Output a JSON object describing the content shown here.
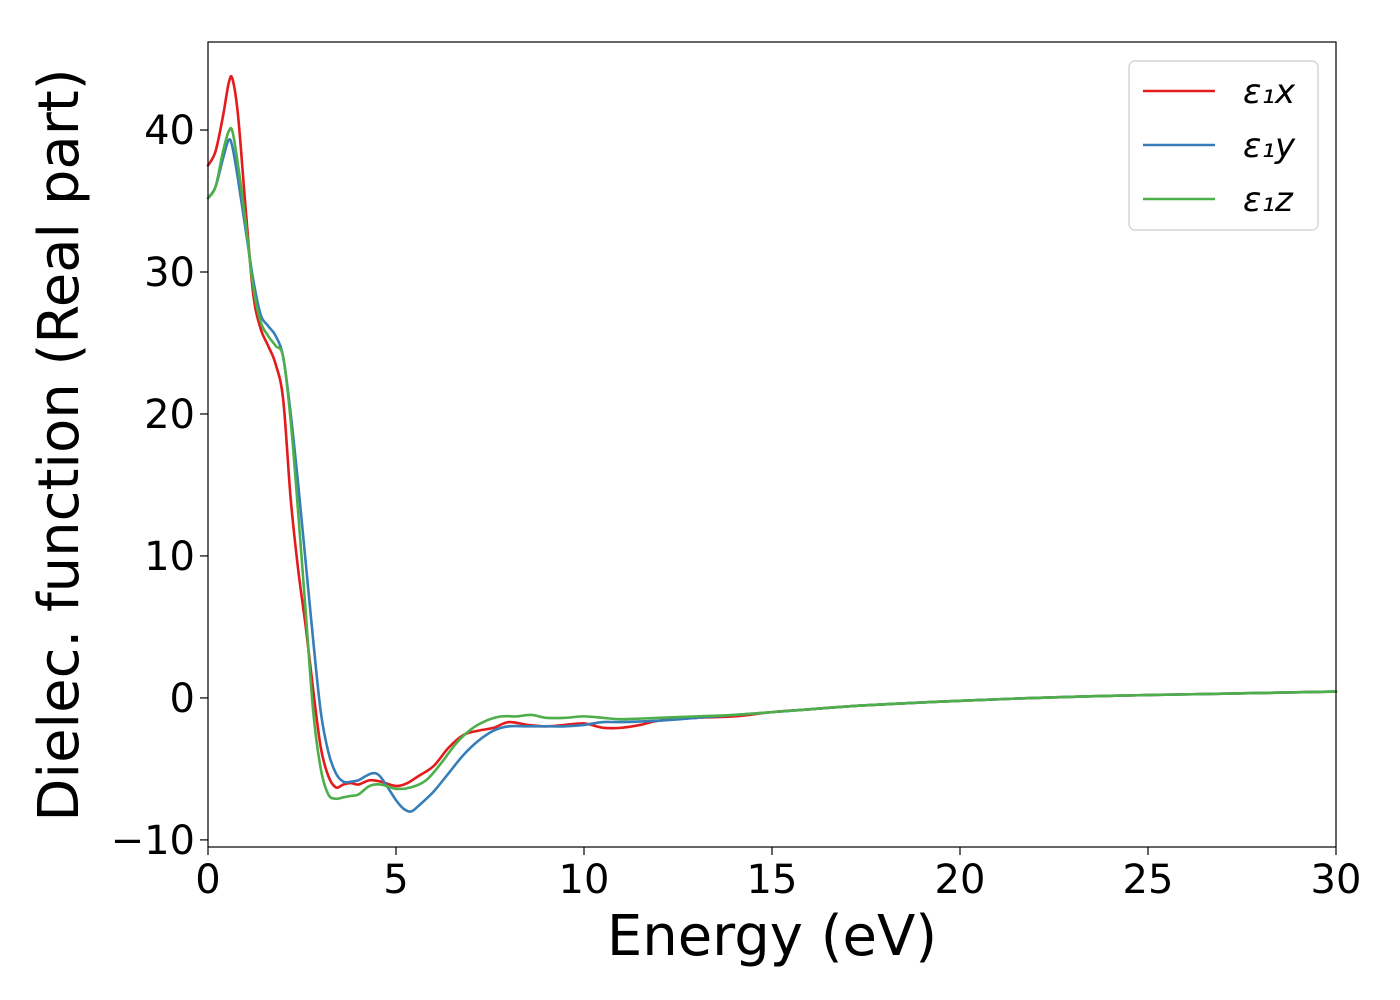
{
  "chart_data": {
    "type": "line",
    "xlabel": "Energy (eV)",
    "ylabel": "Dielec. function (Real part)",
    "xlim": [
      0,
      30
    ],
    "ylim": [
      -10.5,
      46.2
    ],
    "x_ticks": [
      0,
      5,
      10,
      15,
      20,
      25,
      30
    ],
    "x_tick_labels": [
      "0",
      "5",
      "10",
      "15",
      "20",
      "25",
      "30"
    ],
    "y_ticks": [
      -10,
      0,
      10,
      20,
      30,
      40
    ],
    "y_tick_labels": [
      "−10",
      "0",
      "10",
      "20",
      "30",
      "40"
    ],
    "grid": false,
    "legend_position": "top-right",
    "series": [
      {
        "name": "ε₁x",
        "color": "#e41a1c",
        "x": [
          0,
          0.2,
          0.4,
          0.55,
          0.65,
          0.8,
          1.0,
          1.2,
          1.4,
          1.6,
          1.8,
          2.0,
          2.2,
          2.4,
          2.6,
          2.8,
          3.0,
          3.2,
          3.4,
          3.6,
          3.8,
          4.0,
          4.3,
          4.6,
          5.0,
          5.3,
          5.6,
          6.0,
          6.4,
          6.8,
          7.2,
          7.6,
          8.0,
          8.5,
          9.0,
          9.5,
          10.0,
          10.5,
          11.0,
          11.5,
          12.0,
          13.0,
          14.0,
          15.0,
          16.0,
          17.0,
          18.0,
          20.0,
          22.0,
          24.0,
          26.0,
          28.0,
          30.0
        ],
        "y": [
          37.5,
          38.5,
          41.0,
          43.3,
          43.6,
          41.0,
          34.5,
          28.5,
          26.0,
          24.8,
          23.5,
          21.0,
          14.0,
          9.0,
          5.0,
          0.5,
          -3.5,
          -5.5,
          -6.3,
          -6.1,
          -6.0,
          -6.1,
          -5.8,
          -5.9,
          -6.2,
          -6.0,
          -5.5,
          -4.8,
          -3.5,
          -2.6,
          -2.3,
          -2.1,
          -1.7,
          -1.9,
          -2.0,
          -1.9,
          -1.8,
          -2.1,
          -2.1,
          -1.9,
          -1.6,
          -1.4,
          -1.3,
          -1.0,
          -0.8,
          -0.6,
          -0.45,
          -0.2,
          0.0,
          0.15,
          0.25,
          0.35,
          0.45
        ]
      },
      {
        "name": "ε₁y",
        "color": "#377eb8",
        "x": [
          0,
          0.2,
          0.4,
          0.55,
          0.65,
          0.8,
          1.0,
          1.2,
          1.4,
          1.6,
          1.8,
          2.0,
          2.2,
          2.4,
          2.6,
          2.8,
          3.0,
          3.2,
          3.4,
          3.6,
          3.8,
          4.0,
          4.2,
          4.4,
          4.6,
          5.0,
          5.2,
          5.4,
          5.6,
          6.0,
          6.4,
          6.8,
          7.2,
          7.6,
          8.0,
          8.5,
          9.0,
          9.5,
          10.0,
          10.5,
          11.0,
          12.0,
          13.0,
          14.0,
          15.0,
          16.0,
          17.0,
          18.0,
          20.0,
          22.0,
          24.0,
          26.0,
          28.0,
          30.0
        ],
        "y": [
          35.2,
          36.0,
          38.0,
          39.3,
          38.8,
          36.5,
          33.0,
          29.5,
          27.0,
          26.2,
          25.5,
          24.0,
          20.0,
          15.0,
          9.5,
          4.0,
          -1.0,
          -3.8,
          -5.3,
          -5.9,
          -5.9,
          -5.8,
          -5.5,
          -5.3,
          -5.6,
          -7.2,
          -7.8,
          -8.0,
          -7.6,
          -6.6,
          -5.3,
          -4.0,
          -3.0,
          -2.3,
          -2.0,
          -2.0,
          -2.0,
          -2.0,
          -1.9,
          -1.7,
          -1.7,
          -1.6,
          -1.4,
          -1.2,
          -1.0,
          -0.8,
          -0.6,
          -0.45,
          -0.2,
          0.0,
          0.15,
          0.25,
          0.35,
          0.45
        ]
      },
      {
        "name": "ε₁z",
        "color": "#4daf4a",
        "x": [
          0,
          0.2,
          0.4,
          0.55,
          0.65,
          0.8,
          1.0,
          1.2,
          1.4,
          1.6,
          1.8,
          2.0,
          2.2,
          2.4,
          2.6,
          2.8,
          3.0,
          3.2,
          3.4,
          3.6,
          3.8,
          4.0,
          4.3,
          4.6,
          5.0,
          5.4,
          5.8,
          6.2,
          6.6,
          7.0,
          7.4,
          7.8,
          8.2,
          8.6,
          9.0,
          9.5,
          10.0,
          10.5,
          11.0,
          12.0,
          13.0,
          14.0,
          15.0,
          16.0,
          17.0,
          18.0,
          20.0,
          22.0,
          24.0,
          26.0,
          28.0,
          30.0
        ],
        "y": [
          35.2,
          36.0,
          38.5,
          39.9,
          39.9,
          37.5,
          33.5,
          29.0,
          26.5,
          25.5,
          24.8,
          24.0,
          19.5,
          13.0,
          6.0,
          -1.0,
          -5.0,
          -6.8,
          -7.1,
          -7.0,
          -6.9,
          -6.8,
          -6.2,
          -6.1,
          -6.4,
          -6.3,
          -5.8,
          -4.6,
          -3.2,
          -2.2,
          -1.6,
          -1.3,
          -1.3,
          -1.2,
          -1.4,
          -1.4,
          -1.3,
          -1.4,
          -1.5,
          -1.4,
          -1.3,
          -1.2,
          -1.0,
          -0.8,
          -0.6,
          -0.45,
          -0.2,
          0.0,
          0.15,
          0.25,
          0.35,
          0.45
        ]
      }
    ]
  }
}
